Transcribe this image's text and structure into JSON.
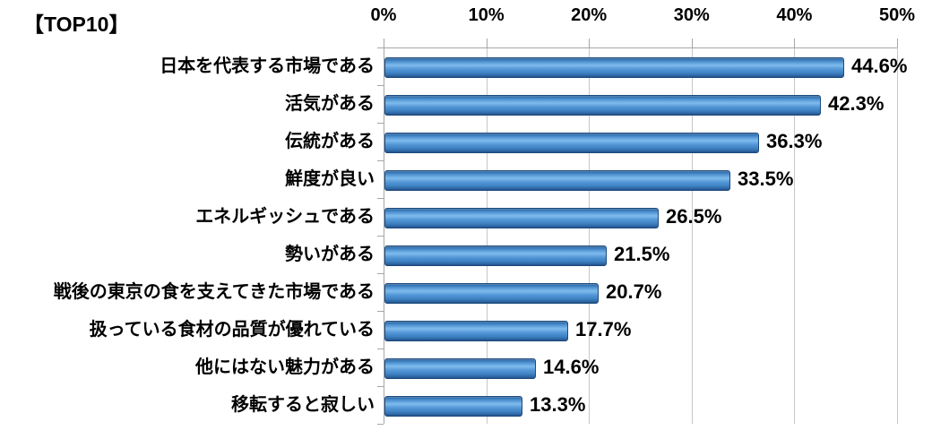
{
  "title": "【TOP10】",
  "chart_data": {
    "type": "bar",
    "orientation": "horizontal",
    "title": "【TOP10】",
    "categories": [
      "日本を代表する市場である",
      "活気がある",
      "伝統がある",
      "鮮度が良い",
      "エネルギッシュである",
      "勢いがある",
      "戦後の東京の食を支えてきた市場である",
      "扱っている食材の品質が優れている",
      "他にはない魅力がある",
      "移転すると寂しい"
    ],
    "values": [
      44.6,
      42.3,
      36.3,
      33.5,
      26.5,
      21.5,
      20.7,
      17.7,
      14.6,
      13.3
    ],
    "value_labels": [
      "44.6%",
      "42.3%",
      "36.3%",
      "33.5%",
      "26.5%",
      "21.5%",
      "20.7%",
      "17.7%",
      "14.6%",
      "13.3%"
    ],
    "xlabel": "",
    "ylabel": "",
    "xlim": [
      0,
      50
    ],
    "x_tick_labels": [
      "0%",
      "10%",
      "20%",
      "30%",
      "40%",
      "50%"
    ],
    "grid": true,
    "legend": false,
    "axis_position": "top",
    "bar_color": "#4A90D5",
    "bar_border_color": "#1C4A7E",
    "gridline_color": "#C6C6C6",
    "axis_color": "#A6A6A6",
    "text_color": "#000000",
    "background_color": "#FFFFFF"
  }
}
